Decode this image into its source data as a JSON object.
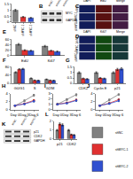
{
  "chart_data": [
    {
      "type": "bar",
      "title": "A",
      "categories": [
        "shNC",
        "shMYC-1",
        "shMYC-2"
      ],
      "values": [
        1.0,
        0.42,
        0.35
      ],
      "errors": [
        0.08,
        0.05,
        0.04
      ],
      "colors": [
        "#808080",
        "#e03030",
        "#3050d0"
      ],
      "ylim": [
        0,
        1.5
      ],
      "yticks": [
        0,
        0.5,
        1,
        1.5
      ],
      "grid": false
    },
    {
      "type": "bar",
      "title": "E",
      "categories": [
        "EdU",
        "Ki67"
      ],
      "series": [
        {
          "name": "shNC",
          "color": "#808080",
          "values": [
            42,
            35
          ],
          "errors": [
            3,
            3
          ]
        },
        {
          "name": "shMYC-1",
          "color": "#e03030",
          "values": [
            20,
            18
          ],
          "errors": [
            2,
            2
          ]
        },
        {
          "name": "shMYC-2",
          "color": "#3050d0",
          "values": [
            18,
            15
          ],
          "errors": [
            2,
            2
          ]
        }
      ],
      "ylim": [
        0,
        60
      ],
      "yticks": [
        0,
        20,
        40,
        60
      ],
      "grid": false
    },
    {
      "type": "bar",
      "title": "F",
      "categories": [
        "G0/G1",
        "S",
        "G2/M"
      ],
      "series": [
        {
          "name": "shNC",
          "color": "#808080",
          "values": [
            55,
            25,
            20
          ],
          "errors": [
            3,
            2,
            2
          ]
        },
        {
          "name": "shMYC-1",
          "color": "#e03030",
          "values": [
            70,
            15,
            15
          ],
          "errors": [
            3,
            2,
            2
          ]
        },
        {
          "name": "shMYC-2",
          "color": "#3050d0",
          "values": [
            72,
            14,
            14
          ],
          "errors": [
            3,
            2,
            2
          ]
        }
      ],
      "ylim": [
        0,
        80
      ],
      "yticks": [
        0,
        40,
        80
      ],
      "grid": false
    },
    {
      "type": "bar",
      "title": "G",
      "categories": [
        "CDK2",
        "Cyclin E",
        "p21"
      ],
      "series": [
        {
          "name": "shNC",
          "color": "#808080",
          "values": [
            1.0,
            1.0,
            1.0
          ],
          "errors": [
            0.08,
            0.08,
            0.08
          ]
        },
        {
          "name": "shMYC-1",
          "color": "#e03030",
          "values": [
            0.45,
            0.5,
            1.3
          ],
          "errors": [
            0.05,
            0.05,
            0.1
          ]
        },
        {
          "name": "shMYC-2",
          "color": "#3050d0",
          "values": [
            0.4,
            0.45,
            1.35
          ],
          "errors": [
            0.05,
            0.05,
            0.1
          ]
        }
      ],
      "ylim": [
        0,
        1.5
      ],
      "yticks": [
        0,
        0.5,
        1,
        1.5
      ],
      "grid": false
    },
    {
      "type": "line",
      "title": "H",
      "categories": [
        "Day 0",
        "Day 3",
        "Day 6"
      ],
      "marker": "circle",
      "series": [
        {
          "name": "shNC",
          "color": "#808080",
          "values": [
            1.0,
            2.2,
            3.6
          ],
          "errors": [
            0.1,
            0.2,
            0.2
          ]
        },
        {
          "name": "shMYC-1",
          "color": "#e03030",
          "values": [
            1.0,
            1.5,
            2.3
          ],
          "errors": [
            0.1,
            0.1,
            0.2
          ]
        },
        {
          "name": "shMYC-2",
          "color": "#3050d0",
          "values": [
            1.0,
            1.4,
            2.1
          ],
          "errors": [
            0.1,
            0.1,
            0.2
          ]
        }
      ],
      "ylim": [
        0,
        4
      ],
      "yticks": [
        0,
        2,
        4
      ],
      "grid": false
    },
    {
      "type": "line",
      "title": "I",
      "categories": [
        "Day 0",
        "Day 3",
        "Day 6"
      ],
      "marker": "circle",
      "series": [
        {
          "name": "shNC",
          "color": "#808080",
          "values": [
            1.0,
            1.9,
            2.8
          ],
          "errors": [
            0.1,
            0.15,
            0.2
          ]
        },
        {
          "name": "shMYC-1",
          "color": "#e03030",
          "values": [
            1.0,
            1.3,
            1.8
          ],
          "errors": [
            0.1,
            0.1,
            0.15
          ]
        },
        {
          "name": "shMYC-2",
          "color": "#3050d0",
          "values": [
            1.0,
            1.2,
            1.7
          ],
          "errors": [
            0.1,
            0.1,
            0.15
          ]
        }
      ],
      "ylim": [
        0,
        3
      ],
      "yticks": [
        0,
        1,
        2,
        3
      ],
      "grid": false
    },
    {
      "type": "line",
      "title": "J",
      "categories": [
        "Day 0",
        "Day 3",
        "Day 6"
      ],
      "marker": "circle",
      "series": [
        {
          "name": "shNC",
          "color": "#808080",
          "values": [
            1.0,
            2.4,
            3.8
          ],
          "errors": [
            0.1,
            0.2,
            0.2
          ]
        },
        {
          "name": "shMYC-1",
          "color": "#e03030",
          "values": [
            1.0,
            1.6,
            2.5
          ],
          "errors": [
            0.1,
            0.15,
            0.2
          ]
        },
        {
          "name": "shMYC-2",
          "color": "#3050d0",
          "values": [
            1.0,
            1.5,
            2.2
          ],
          "errors": [
            0.1,
            0.15,
            0.2
          ]
        }
      ],
      "ylim": [
        0,
        4
      ],
      "yticks": [
        0,
        2,
        4
      ],
      "grid": false
    },
    {
      "type": "bar",
      "title": "L",
      "categories": [
        "p21",
        "CDK2"
      ],
      "legend": "right",
      "series": [
        {
          "name": "shNC",
          "color": "#808080",
          "values": [
            1.0,
            1.0
          ],
          "errors": [
            0.08,
            0.08
          ]
        },
        {
          "name": "shMYC-1",
          "color": "#e03030",
          "values": [
            1.7,
            0.5
          ],
          "errors": [
            0.12,
            0.05
          ]
        },
        {
          "name": "shMYC-2",
          "color": "#3050d0",
          "values": [
            1.6,
            0.45
          ],
          "errors": [
            0.12,
            0.05
          ]
        }
      ],
      "ylim": [
        0,
        2
      ],
      "yticks": [
        0,
        1,
        2
      ],
      "grid": false
    }
  ],
  "micrographs": [
    {
      "title": "C",
      "rows": [
        "shNC",
        "shMYC-1",
        "shMYC-2"
      ],
      "columns": [
        {
          "name": "DAPI",
          "color": "#3050ff"
        },
        {
          "name": "EdU",
          "color": "#ff3030"
        },
        {
          "name": "Merge",
          "color": "#c050c0"
        }
      ]
    },
    {
      "title": "D",
      "rows": [
        "shNC",
        "shMYC-1",
        "shMYC-2"
      ],
      "columns": [
        {
          "name": "DAPI",
          "color": "#3050ff"
        },
        {
          "name": "Ki67",
          "color": "#30d030"
        },
        {
          "name": "Merge",
          "color": "#40a0a0"
        }
      ]
    }
  ],
  "blots": [
    {
      "title": "B",
      "lanes": [
        "shNC",
        "shMYC-1",
        "shMYC-2"
      ],
      "bands": [
        "MYC",
        "GAPDH"
      ]
    },
    {
      "title": "K",
      "lanes": [
        "shNC",
        "shMYC-1",
        "shMYC-2"
      ],
      "bands": [
        "p21",
        "CDK2",
        "GAPDH"
      ]
    }
  ]
}
